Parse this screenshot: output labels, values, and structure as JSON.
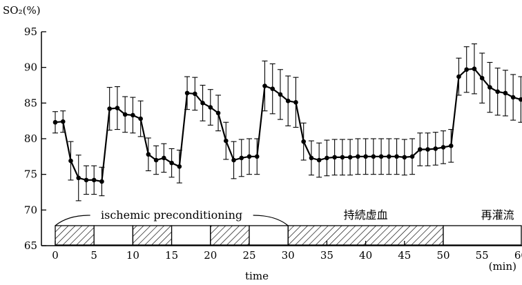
{
  "chart_data": {
    "type": "line",
    "ylabel": "SO₂(%)",
    "xlabel": "time",
    "x_unit": "(min)",
    "xlim": [
      -1,
      64.5
    ],
    "ylim": [
      65,
      95
    ],
    "xticks": [
      0,
      5,
      10,
      15,
      20,
      25,
      30,
      35,
      40,
      45,
      50,
      55,
      60
    ],
    "yticks": [
      65,
      70,
      75,
      80,
      85,
      90,
      95
    ],
    "grid": false,
    "series": [
      {
        "x": [
          0,
          1,
          2,
          3,
          4,
          5,
          6,
          7,
          8,
          9,
          10,
          11,
          12,
          13,
          14,
          15,
          16,
          17,
          18,
          19,
          20,
          21,
          22,
          23,
          24,
          25,
          26,
          27,
          28,
          29,
          30,
          31,
          32,
          33,
          34,
          35,
          36,
          37,
          38,
          39,
          40,
          41,
          42,
          43,
          44,
          45,
          46,
          47,
          48,
          49,
          50,
          51,
          52,
          53,
          54,
          55,
          56,
          57,
          58,
          59,
          60,
          61,
          62,
          63
        ],
        "values": [
          82.3,
          82.4,
          76.9,
          74.5,
          74.2,
          74.2,
          74.0,
          84.2,
          84.3,
          83.4,
          83.3,
          82.8,
          77.8,
          77.0,
          77.3,
          76.6,
          76.1,
          86.4,
          86.3,
          85.0,
          84.4,
          83.6,
          79.7,
          77.0,
          77.3,
          77.5,
          77.5,
          87.4,
          87.0,
          86.2,
          85.3,
          85.1,
          79.6,
          77.3,
          77.0,
          77.3,
          77.4,
          77.4,
          77.4,
          77.5,
          77.5,
          77.5,
          77.5,
          77.5,
          77.5,
          77.4,
          77.5,
          78.5,
          78.5,
          78.6,
          78.8,
          79.0,
          88.7,
          89.7,
          89.8,
          88.5,
          87.2,
          86.6,
          86.4,
          85.8,
          85.5,
          85.1,
          85.2,
          85.2
        ],
        "error": [
          1.5,
          1.5,
          2.7,
          3.2,
          2.0,
          2.0,
          2.0,
          3.0,
          3.0,
          2.5,
          2.5,
          2.5,
          2.3,
          2.0,
          2.0,
          2.0,
          2.3,
          2.3,
          2.3,
          2.5,
          2.5,
          2.5,
          2.6,
          2.6,
          2.6,
          2.5,
          2.5,
          3.5,
          3.5,
          3.5,
          3.5,
          3.5,
          2.6,
          2.4,
          2.4,
          2.5,
          2.5,
          2.5,
          2.5,
          2.5,
          2.5,
          2.5,
          2.5,
          2.5,
          2.5,
          2.5,
          2.5,
          2.3,
          2.3,
          2.3,
          2.3,
          2.3,
          2.6,
          3.2,
          3.5,
          3.5,
          3.5,
          3.3,
          3.2,
          3.2,
          3.2,
          3.2,
          3.2,
          2.8
        ]
      }
    ],
    "protocol_bar": {
      "segments": [
        {
          "start": 0,
          "end": 5,
          "hatched": true
        },
        {
          "start": 5,
          "end": 10,
          "hatched": false
        },
        {
          "start": 10,
          "end": 15,
          "hatched": true
        },
        {
          "start": 15,
          "end": 20,
          "hatched": false
        },
        {
          "start": 20,
          "end": 25,
          "hatched": true
        },
        {
          "start": 25,
          "end": 30,
          "hatched": false
        },
        {
          "start": 30,
          "end": 50,
          "hatched": true
        },
        {
          "start": 50,
          "end": 64.5,
          "hatched": false
        }
      ],
      "labels": [
        {
          "text": "ischemic preconditioning",
          "center": 15,
          "bracket": [
            0,
            30
          ]
        },
        {
          "text": "持続虚血",
          "center": 40,
          "bracket": null
        },
        {
          "text": "再灌流",
          "center": 57,
          "bracket": null
        }
      ]
    }
  }
}
